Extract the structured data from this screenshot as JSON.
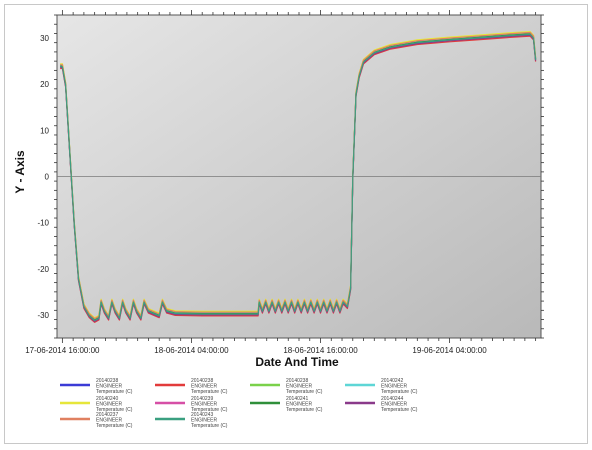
{
  "chart_data": {
    "type": "line",
    "title": "",
    "xlabel": "Date And Time",
    "ylabel": "Y - Axis",
    "ylim": [
      -35,
      35
    ],
    "xlim_hours": [
      -0.5,
      44.5
    ],
    "y_ticks": [
      30,
      20,
      10,
      0,
      -10,
      -20,
      -30
    ],
    "x_ticks": [
      {
        "label": "17-06-2014 16:00:00",
        "hour": 0
      },
      {
        "label": "18-06-2014 04:00:00",
        "hour": 12
      },
      {
        "label": "18-06-2014 16:00:00",
        "hour": 24
      },
      {
        "label": "19-06-2014 04:00:00",
        "hour": 36
      }
    ],
    "grid": false,
    "legend_position": "bottom",
    "series_points_hours": [
      [
        -0.2,
        24
      ],
      [
        0,
        24
      ],
      [
        0.3,
        20
      ],
      [
        0.7,
        5
      ],
      [
        1.1,
        -10
      ],
      [
        1.5,
        -22
      ],
      [
        2.0,
        -28
      ],
      [
        2.5,
        -30
      ],
      [
        3.0,
        -31
      ],
      [
        3.4,
        -30.5
      ],
      [
        3.6,
        -27
      ],
      [
        3.9,
        -29
      ],
      [
        4.3,
        -30.5
      ],
      [
        4.6,
        -27
      ],
      [
        4.9,
        -29
      ],
      [
        5.3,
        -30.5
      ],
      [
        5.6,
        -27
      ],
      [
        5.9,
        -29
      ],
      [
        6.3,
        -30.5
      ],
      [
        6.6,
        -27
      ],
      [
        6.9,
        -29
      ],
      [
        7.3,
        -30.5
      ],
      [
        7.6,
        -27
      ],
      [
        8.0,
        -29
      ],
      [
        9.0,
        -30
      ],
      [
        9.3,
        -27
      ],
      [
        9.7,
        -29
      ],
      [
        10.5,
        -29.5
      ],
      [
        13,
        -29.6
      ],
      [
        17.5,
        -29.6
      ],
      [
        18.2,
        -29.6
      ],
      [
        18.3,
        -27
      ],
      [
        18.6,
        -29
      ],
      [
        18.9,
        -27
      ],
      [
        19.2,
        -29
      ],
      [
        19.5,
        -27
      ],
      [
        19.8,
        -29
      ],
      [
        20.1,
        -27
      ],
      [
        20.4,
        -29
      ],
      [
        20.7,
        -27
      ],
      [
        21.0,
        -29
      ],
      [
        21.3,
        -27
      ],
      [
        21.6,
        -29
      ],
      [
        21.9,
        -27
      ],
      [
        22.2,
        -29
      ],
      [
        22.5,
        -27
      ],
      [
        22.8,
        -29
      ],
      [
        23.1,
        -27
      ],
      [
        23.4,
        -29
      ],
      [
        23.7,
        -27
      ],
      [
        24.0,
        -29
      ],
      [
        24.3,
        -27
      ],
      [
        24.6,
        -29
      ],
      [
        24.9,
        -27
      ],
      [
        25.2,
        -29
      ],
      [
        25.5,
        -27
      ],
      [
        25.8,
        -29
      ],
      [
        26.1,
        -27
      ],
      [
        26.5,
        -28
      ],
      [
        26.8,
        -24
      ],
      [
        27.0,
        0
      ],
      [
        27.3,
        18
      ],
      [
        27.6,
        22
      ],
      [
        28.0,
        25
      ],
      [
        29.0,
        27
      ],
      [
        30.5,
        28.2
      ],
      [
        33,
        29.2
      ],
      [
        36,
        29.8
      ],
      [
        39,
        30.3
      ],
      [
        42,
        30.8
      ],
      [
        43.5,
        31
      ],
      [
        43.8,
        30.2
      ],
      [
        44.0,
        25.5
      ]
    ],
    "series": [
      {
        "color": "#3b3bd6",
        "offset": 0
      },
      {
        "color": "#e23b3b",
        "offset": -0.6
      },
      {
        "color": "#7ad14a",
        "offset": 0.3
      },
      {
        "color": "#5ed6d6",
        "offset": 0.1
      },
      {
        "color": "#e6e63a",
        "offset": 0.4
      },
      {
        "color": "#d64fa6",
        "offset": -0.3
      },
      {
        "color": "#2f8f3a",
        "offset": -0.1
      },
      {
        "color": "#8a3a8a",
        "offset": -0.4
      },
      {
        "color": "#e08060",
        "offset": 0.2
      },
      {
        "color": "#3aa080",
        "offset": -0.2
      }
    ]
  },
  "legend": {
    "entries": [
      {
        "color": "#3b3bd6",
        "lines": [
          "20140238",
          "ENGINEER",
          "Temperature (C)"
        ]
      },
      {
        "color": "#e23b3b",
        "lines": [
          "20140238",
          "ENGINEER",
          "Temperature (C)"
        ]
      },
      {
        "color": "#7ad14a",
        "lines": [
          "20140238",
          "ENGINEER",
          "Temperature (C)"
        ]
      },
      {
        "color": "#5ed6d6",
        "lines": [
          "20140242",
          "ENGINEER",
          "Temperature (C)"
        ]
      },
      {
        "color": "#e6e63a",
        "lines": [
          "20140240",
          "ENGINEER",
          "Temperature (C)"
        ]
      },
      {
        "color": "#d64fa6",
        "lines": [
          "20140239",
          "ENGINEER",
          "Temperature (C)"
        ]
      },
      {
        "color": "#2f8f3a",
        "lines": [
          "20140241",
          "ENGINEER",
          "Temperature (C)"
        ]
      },
      {
        "color": "#8a3a8a",
        "lines": [
          "20140244",
          "ENGINEER",
          "Temperature (C)"
        ]
      },
      {
        "color": "#e08060",
        "lines": [
          "20140237",
          "ENGINEER",
          "Temperature (C)"
        ]
      },
      {
        "color": "#3aa080",
        "lines": [
          "20140243",
          "ENGINEER",
          "Temperature (C)"
        ]
      }
    ]
  }
}
